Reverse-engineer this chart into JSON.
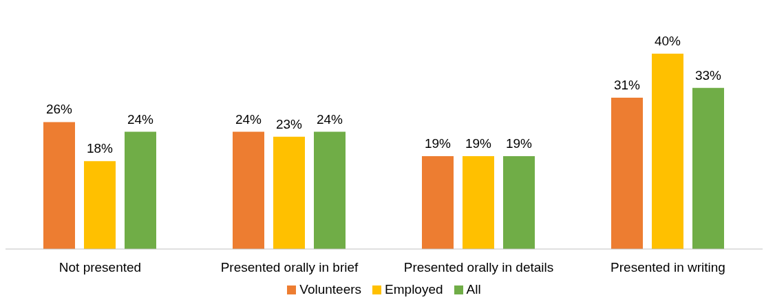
{
  "chart_data": {
    "type": "bar",
    "categories": [
      "Not presented",
      "Presented orally in brief",
      "Presented orally in details",
      "Presented in writing"
    ],
    "series": [
      {
        "name": "Volunteers",
        "color": "#ed7d31",
        "values": [
          26,
          24,
          19,
          31
        ],
        "value_labels": [
          "26%",
          "24%",
          "19%",
          "31%"
        ]
      },
      {
        "name": "Employed",
        "color": "#ffc000",
        "values": [
          18,
          23,
          19,
          40
        ],
        "value_labels": [
          "18%",
          "23%",
          "19%",
          "40%"
        ]
      },
      {
        "name": "All",
        "color": "#70ad47",
        "values": [
          24,
          24,
          19,
          33
        ],
        "value_labels": [
          "24%",
          "24%",
          "19%",
          "33%"
        ]
      }
    ],
    "legend": "bottom",
    "grid": false
  }
}
